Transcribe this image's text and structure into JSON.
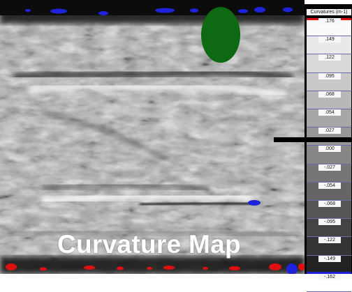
{
  "map": {
    "title": "Curvature Map",
    "colors": {
      "marker": "#0e6a12",
      "positive_blob": "#1e22d8",
      "negative_blob": "#e01010",
      "background_gray": "#a8a8a8"
    }
  },
  "legend": {
    "title": "Curvatures (m-1)",
    "labels": [
      ".176",
      ".149",
      ".122",
      ".095",
      ".068",
      ".054",
      ".027",
      ".000",
      "-.027",
      "-.054",
      "-.068",
      "-.095",
      "-.122",
      "-.149",
      "-.162"
    ],
    "top_color": "#e01010",
    "bottom_color": "#1e22d8"
  }
}
